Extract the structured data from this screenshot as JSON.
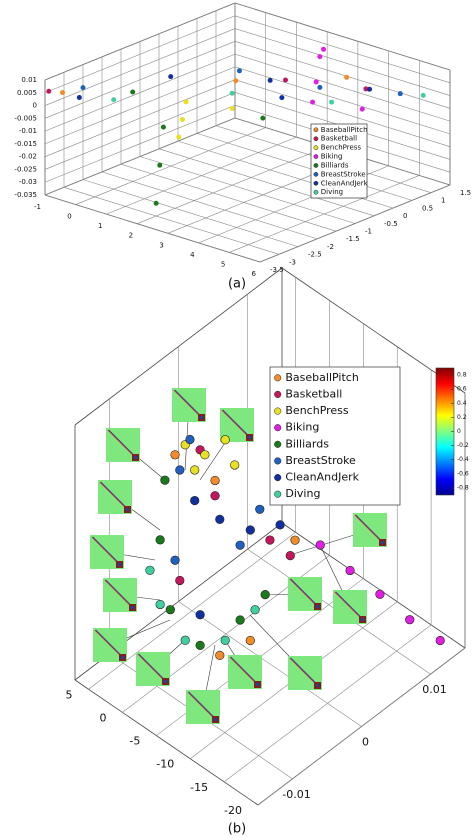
{
  "chart_data": [
    {
      "type": "scatter3d",
      "caption": "(a)",
      "xlim": [
        -1,
        6
      ],
      "ylim": [
        -3.5,
        1.5
      ],
      "zlim": [
        -0.035,
        0.01
      ],
      "xticks": [
        -1,
        0,
        1,
        2,
        3,
        4,
        5,
        6
      ],
      "yticks": [
        1.5,
        1,
        0.5,
        0,
        -0.5,
        -1,
        -1.5,
        -2,
        -2.5,
        -3,
        -3.5
      ],
      "zticks": [
        0.01,
        0.005,
        0,
        -0.005,
        -0.01,
        -0.015,
        -0.02,
        -0.025,
        -0.03,
        -0.035
      ],
      "grid": true,
      "legend": "lower-right",
      "series": [
        {
          "name": "BaseballPitch",
          "color": "#f28c28",
          "x": [
            -0.8,
            1.5,
            3.5
          ],
          "y": [
            -3.2,
            -0.5,
            0.8
          ],
          "z": [
            0.004,
            0.001,
            0.002
          ]
        },
        {
          "name": "Basketball",
          "color": "#c2185b",
          "x": [
            -1,
            2.5,
            4.5
          ],
          "y": [
            -3.4,
            0,
            0.5
          ],
          "z": [
            0.005,
            0.002,
            0.003
          ]
        },
        {
          "name": "BenchPress",
          "color": "#e8e020",
          "x": [
            1,
            0.5,
            1.5,
            2
          ],
          "y": [
            -1.5,
            -1,
            -2,
            -1
          ],
          "z": [
            -0.01,
            -0.008,
            -0.012,
            -0.005
          ]
        },
        {
          "name": "Biking",
          "color": "#e020e0",
          "x": [
            3,
            3.5,
            4,
            2.5,
            5
          ],
          "y": [
            0.5,
            0,
            -0.5,
            1,
            0
          ],
          "z": [
            0.01,
            0.005,
            0.002,
            0.008,
            0
          ]
        },
        {
          "name": "Billiards",
          "color": "#1a7a1a",
          "x": [
            2,
            1.5,
            1,
            0,
            3
          ],
          "y": [
            -3,
            -2.5,
            -2,
            -2,
            -1
          ],
          "z": [
            -0.03,
            -0.02,
            -0.01,
            0,
            -0.005
          ]
        },
        {
          "name": "BreastStroke",
          "color": "#2060c0",
          "x": [
            1,
            5,
            3,
            -1
          ],
          "y": [
            0,
            1,
            0.5,
            -2.5
          ],
          "z": [
            0,
            0,
            -0.002,
            0.001
          ]
        },
        {
          "name": "CleanAndJerk",
          "color": "#1030a0",
          "x": [
            2,
            0,
            4,
            -0.5,
            3
          ],
          "y": [
            0,
            -1,
            1,
            -3,
            -0.5
          ],
          "z": [
            0,
            0,
            -0.002,
            0.002,
            0
          ]
        },
        {
          "name": "Diving",
          "color": "#40d0a0",
          "x": [
            0,
            2,
            4,
            5.5
          ],
          "y": [
            -2.5,
            -1,
            0,
            1.2
          ],
          "z": [
            0,
            0.001,
            -0.001,
            0
          ]
        }
      ]
    },
    {
      "type": "scatter3d",
      "caption": "(b)",
      "xlim": [
        -20,
        7
      ],
      "ylim": [
        -0.015,
        0.015
      ],
      "zlim": [
        -1,
        0.5
      ],
      "xticks": [
        5,
        0,
        -5,
        -10,
        -15,
        -20
      ],
      "yticks": [
        0.01,
        0,
        -0.01
      ],
      "grid": true,
      "legend": "upper-right",
      "colorbar": {
        "colormap": "jet",
        "lim": [
          -0.9,
          0.9
        ],
        "ticks": [
          0.8,
          0.6,
          0.4,
          0.2,
          0,
          -0.2,
          -0.4,
          -0.6,
          -0.8
        ]
      },
      "series": [
        {
          "name": "BaseballPitch",
          "color": "#f28c28",
          "x": [
            1.4,
            -4.5,
            -5.2,
            -9.7,
            -16.3
          ],
          "y": [
            -0.006,
            -0.006,
            -0.006,
            -0.006,
            -0.006
          ],
          "z": [
            0.2,
            0.21,
            -0.8,
            -0.59,
            0.18
          ]
        },
        {
          "name": "Basketball",
          "color": "#c2185b",
          "x": [
            -2.3,
            -12.6,
            -4.5,
            0.7,
            -15.6
          ],
          "y": [
            -0.006,
            -0.006,
            -0.006,
            -0.006,
            -0.006
          ],
          "z": [
            0.33,
            0.08,
            0.12,
            -0.52,
            0.07
          ]
        },
        {
          "name": "BenchPress",
          "color": "#e8e020",
          "x": [
            -0.1,
            -3,
            -7.4,
            -6,
            -1.5
          ],
          "y": [
            -0.006,
            -0.006,
            -0.006,
            -0.006,
            -0.006
          ],
          "z": [
            0.3,
            0.32,
            0.38,
            0.49,
            0.19
          ]
        },
        {
          "name": "Biking",
          "color": "#e020e0",
          "x": [
            -19.4,
            -14.9,
            -10.5,
            -6.1,
            -1.7
          ],
          "y": [
            0.012,
            0.012,
            0.012,
            0.012,
            0.012
          ],
          "z": [
            -0.88,
            -0.88,
            -0.85,
            -0.83,
            -0.8
          ]
        },
        {
          "name": "Billiards",
          "color": "#1a7a1a",
          "x": [
            2.9,
            3.6,
            2.1,
            -2.3,
            -8.2,
            -11.9
          ],
          "y": [
            -0.006,
            -0.006,
            -0.006,
            -0.006,
            -0.006,
            -0.006
          ],
          "z": [
            0.01,
            -0.36,
            -0.73,
            -0.82,
            -0.51,
            -0.26
          ]
        },
        {
          "name": "BreastStroke",
          "color": "#2060c0",
          "x": [
            0.7,
            -0.8,
            -8.2,
            -11.1,
            1.4
          ],
          "y": [
            -0.006,
            -0.006,
            -0.006,
            -0.006,
            -0.006
          ],
          "z": [
            0.13,
            0.35,
            -0.07,
            0.22,
            -0.42
          ]
        },
        {
          "name": "CleanAndJerk",
          "color": "#1030a0",
          "x": [
            -5.2,
            -9.7,
            -1.5,
            -2.3,
            -14.1
          ],
          "y": [
            -0.006,
            -0.006,
            -0.006,
            -0.006,
            -0.006
          ],
          "z": [
            0,
            0.06,
            0.01,
            -0.64,
            0.21
          ]
        },
        {
          "name": "Diving",
          "color": "#40d0a0",
          "x": [
            5.1,
            3.6,
            -0.1,
            -6,
            -10.4
          ],
          "y": [
            -0.006,
            -0.006,
            -0.006,
            -0.006,
            -0.006
          ],
          "z": [
            -0.58,
            -0.74,
            -0.85,
            -0.69,
            -0.39
          ]
        }
      ]
    }
  ]
}
